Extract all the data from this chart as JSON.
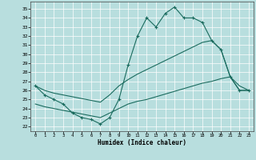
{
  "xlabel": "Humidex (Indice chaleur)",
  "bg_color": "#b8dede",
  "line_color": "#1a6b5e",
  "xlim": [
    -0.5,
    23.5
  ],
  "ylim": [
    21.5,
    35.8
  ],
  "yticks": [
    22,
    23,
    24,
    25,
    26,
    27,
    28,
    29,
    30,
    31,
    32,
    33,
    34,
    35
  ],
  "xticks": [
    0,
    1,
    2,
    3,
    4,
    5,
    6,
    7,
    8,
    9,
    10,
    11,
    12,
    13,
    14,
    15,
    16,
    17,
    18,
    19,
    20,
    21,
    22,
    23
  ],
  "curve1_x": [
    0,
    1,
    2,
    3,
    4,
    5,
    6,
    7,
    8,
    9,
    10,
    11,
    12,
    13,
    14,
    15,
    16,
    17,
    18,
    19,
    20,
    21,
    22,
    23
  ],
  "curve1_y": [
    26.5,
    25.5,
    25.0,
    24.5,
    23.5,
    23.0,
    22.8,
    22.3,
    23.0,
    25.0,
    28.8,
    32.0,
    34.0,
    33.0,
    34.5,
    35.2,
    34.0,
    34.0,
    33.5,
    31.5,
    30.5,
    27.5,
    26.0,
    26.0
  ],
  "curve2_x": [
    0,
    1,
    2,
    3,
    4,
    5,
    6,
    7,
    8,
    9,
    10,
    11,
    12,
    13,
    14,
    15,
    16,
    17,
    18,
    19,
    20,
    21,
    22,
    23
  ],
  "curve2_y": [
    26.5,
    26.0,
    25.7,
    25.5,
    25.3,
    25.1,
    24.9,
    24.7,
    25.5,
    26.5,
    27.2,
    27.8,
    28.3,
    28.8,
    29.3,
    29.8,
    30.3,
    30.8,
    31.3,
    31.5,
    30.5,
    27.5,
    26.0,
    26.0
  ],
  "curve3_x": [
    0,
    1,
    2,
    3,
    4,
    5,
    6,
    7,
    8,
    9,
    10,
    11,
    12,
    13,
    14,
    15,
    16,
    17,
    18,
    19,
    20,
    21,
    22,
    23
  ],
  "curve3_y": [
    24.5,
    24.2,
    24.0,
    23.8,
    23.6,
    23.4,
    23.2,
    23.0,
    23.5,
    24.0,
    24.5,
    24.8,
    25.0,
    25.3,
    25.6,
    25.9,
    26.2,
    26.5,
    26.8,
    27.0,
    27.3,
    27.5,
    26.5,
    26.0
  ]
}
